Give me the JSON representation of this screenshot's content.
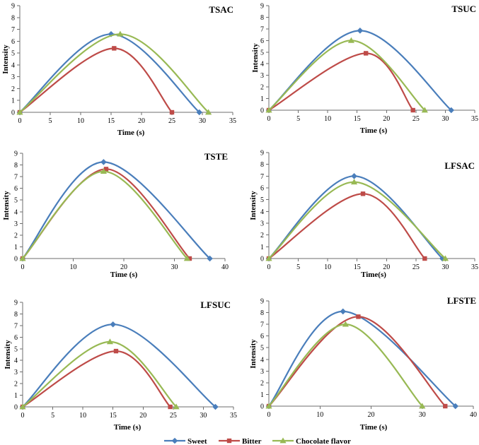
{
  "legend": [
    {
      "label": "Sweet",
      "color": "#4A7EBB",
      "marker": "diamond"
    },
    {
      "label": "Bitter",
      "color": "#BE4B48",
      "marker": "square"
    },
    {
      "label": "Chocolate flavor",
      "color": "#98B954",
      "marker": "triangle"
    }
  ],
  "chart_data": [
    {
      "type": "line",
      "title": "TSAC",
      "xlabel": "Time (s)",
      "ylabel": "Intensity",
      "xlim": [
        0,
        35
      ],
      "ylim": [
        0,
        9
      ],
      "xticks": [
        0,
        5,
        10,
        15,
        20,
        25,
        30,
        35
      ],
      "yticks": [
        0,
        1,
        2,
        3,
        4,
        5,
        6,
        7,
        8,
        9
      ],
      "grid": false,
      "series": [
        {
          "name": "Sweet",
          "x": [
            0,
            15,
            29.5
          ],
          "y": [
            0,
            6.6,
            0
          ]
        },
        {
          "name": "Bitter",
          "x": [
            0,
            15.5,
            25
          ],
          "y": [
            0,
            5.4,
            0
          ]
        },
        {
          "name": "Chocolate flavor",
          "x": [
            0,
            16.5,
            31
          ],
          "y": [
            0,
            6.6,
            0
          ]
        }
      ]
    },
    {
      "type": "line",
      "title": "TSUC",
      "xlabel": "Time (s)",
      "ylabel": "Intensity",
      "xlim": [
        0,
        35
      ],
      "ylim": [
        0,
        9
      ],
      "xticks": [
        0,
        5,
        10,
        15,
        20,
        25,
        30,
        35
      ],
      "yticks": [
        0,
        1,
        2,
        3,
        4,
        5,
        6,
        7,
        8,
        9
      ],
      "grid": false,
      "series": [
        {
          "name": "Sweet",
          "x": [
            0,
            15.5,
            31
          ],
          "y": [
            0,
            6.85,
            0
          ]
        },
        {
          "name": "Bitter",
          "x": [
            0,
            16.5,
            24.5
          ],
          "y": [
            0,
            4.9,
            0
          ]
        },
        {
          "name": "Chocolate flavor",
          "x": [
            0,
            14,
            26.5
          ],
          "y": [
            0,
            6.0,
            0
          ]
        }
      ]
    },
    {
      "type": "line",
      "title": "TSTE",
      "xlabel": "Time (s)",
      "ylabel": "Intensity",
      "xlim": [
        0,
        40
      ],
      "ylim": [
        0,
        9
      ],
      "xticks": [
        0,
        10,
        20,
        30,
        40
      ],
      "yticks": [
        0,
        1,
        2,
        3,
        4,
        5,
        6,
        7,
        8,
        9
      ],
      "grid": false,
      "series": [
        {
          "name": "Sweet",
          "x": [
            0,
            16,
            37
          ],
          "y": [
            0,
            8.25,
            0
          ]
        },
        {
          "name": "Bitter",
          "x": [
            0,
            16.5,
            33
          ],
          "y": [
            0,
            7.65,
            0
          ]
        },
        {
          "name": "Chocolate flavor",
          "x": [
            0,
            16,
            32.5
          ],
          "y": [
            0,
            7.45,
            0
          ]
        }
      ]
    },
    {
      "type": "line",
      "title": "LFSAC",
      "xlabel": "Time(s)",
      "ylabel": "Intensity",
      "xlim": [
        0,
        35
      ],
      "ylim": [
        0,
        9
      ],
      "xticks": [
        0,
        5,
        10,
        15,
        20,
        25,
        30,
        35
      ],
      "yticks": [
        0,
        1,
        2,
        3,
        4,
        5,
        6,
        7,
        8,
        9
      ],
      "grid": false,
      "series": [
        {
          "name": "Sweet",
          "x": [
            0,
            14.5,
            29.5
          ],
          "y": [
            0,
            7.0,
            0
          ]
        },
        {
          "name": "Bitter",
          "x": [
            0,
            16,
            26.5
          ],
          "y": [
            0,
            5.5,
            0
          ]
        },
        {
          "name": "Chocolate flavor",
          "x": [
            0,
            14.5,
            30
          ],
          "y": [
            0,
            6.5,
            0
          ]
        }
      ]
    },
    {
      "type": "line",
      "title": "LFSUC",
      "xlabel": "Time (s)",
      "ylabel": "Intensity",
      "xlim": [
        0,
        35
      ],
      "ylim": [
        0,
        9
      ],
      "xticks": [
        0,
        5,
        10,
        15,
        20,
        25,
        30,
        35
      ],
      "yticks": [
        0,
        1,
        2,
        3,
        4,
        5,
        6,
        7,
        8,
        9
      ],
      "grid": false,
      "series": [
        {
          "name": "Sweet",
          "x": [
            0,
            15,
            32
          ],
          "y": [
            0,
            7.1,
            0
          ]
        },
        {
          "name": "Bitter",
          "x": [
            0,
            15.5,
            24.5
          ],
          "y": [
            0,
            4.8,
            0
          ]
        },
        {
          "name": "Chocolate flavor",
          "x": [
            0,
            14.5,
            25.5
          ],
          "y": [
            0,
            5.6,
            0
          ]
        }
      ]
    },
    {
      "type": "line",
      "title": "LFSTE",
      "xlabel": "Time (s)",
      "ylabel": "Intensity",
      "xlim": [
        0,
        40
      ],
      "ylim": [
        0,
        9
      ],
      "xticks": [
        0,
        10,
        20,
        30,
        40
      ],
      "yticks": [
        0,
        1,
        2,
        3,
        4,
        5,
        6,
        7,
        8,
        9
      ],
      "grid": false,
      "series": [
        {
          "name": "Sweet",
          "x": [
            0,
            14.5,
            36.5
          ],
          "y": [
            0,
            8.1,
            0
          ]
        },
        {
          "name": "Bitter",
          "x": [
            0,
            17.5,
            34.5
          ],
          "y": [
            0,
            7.65,
            0
          ]
        },
        {
          "name": "Chocolate flavor",
          "x": [
            0,
            15,
            30
          ],
          "y": [
            0,
            7.0,
            0
          ]
        }
      ]
    }
  ]
}
